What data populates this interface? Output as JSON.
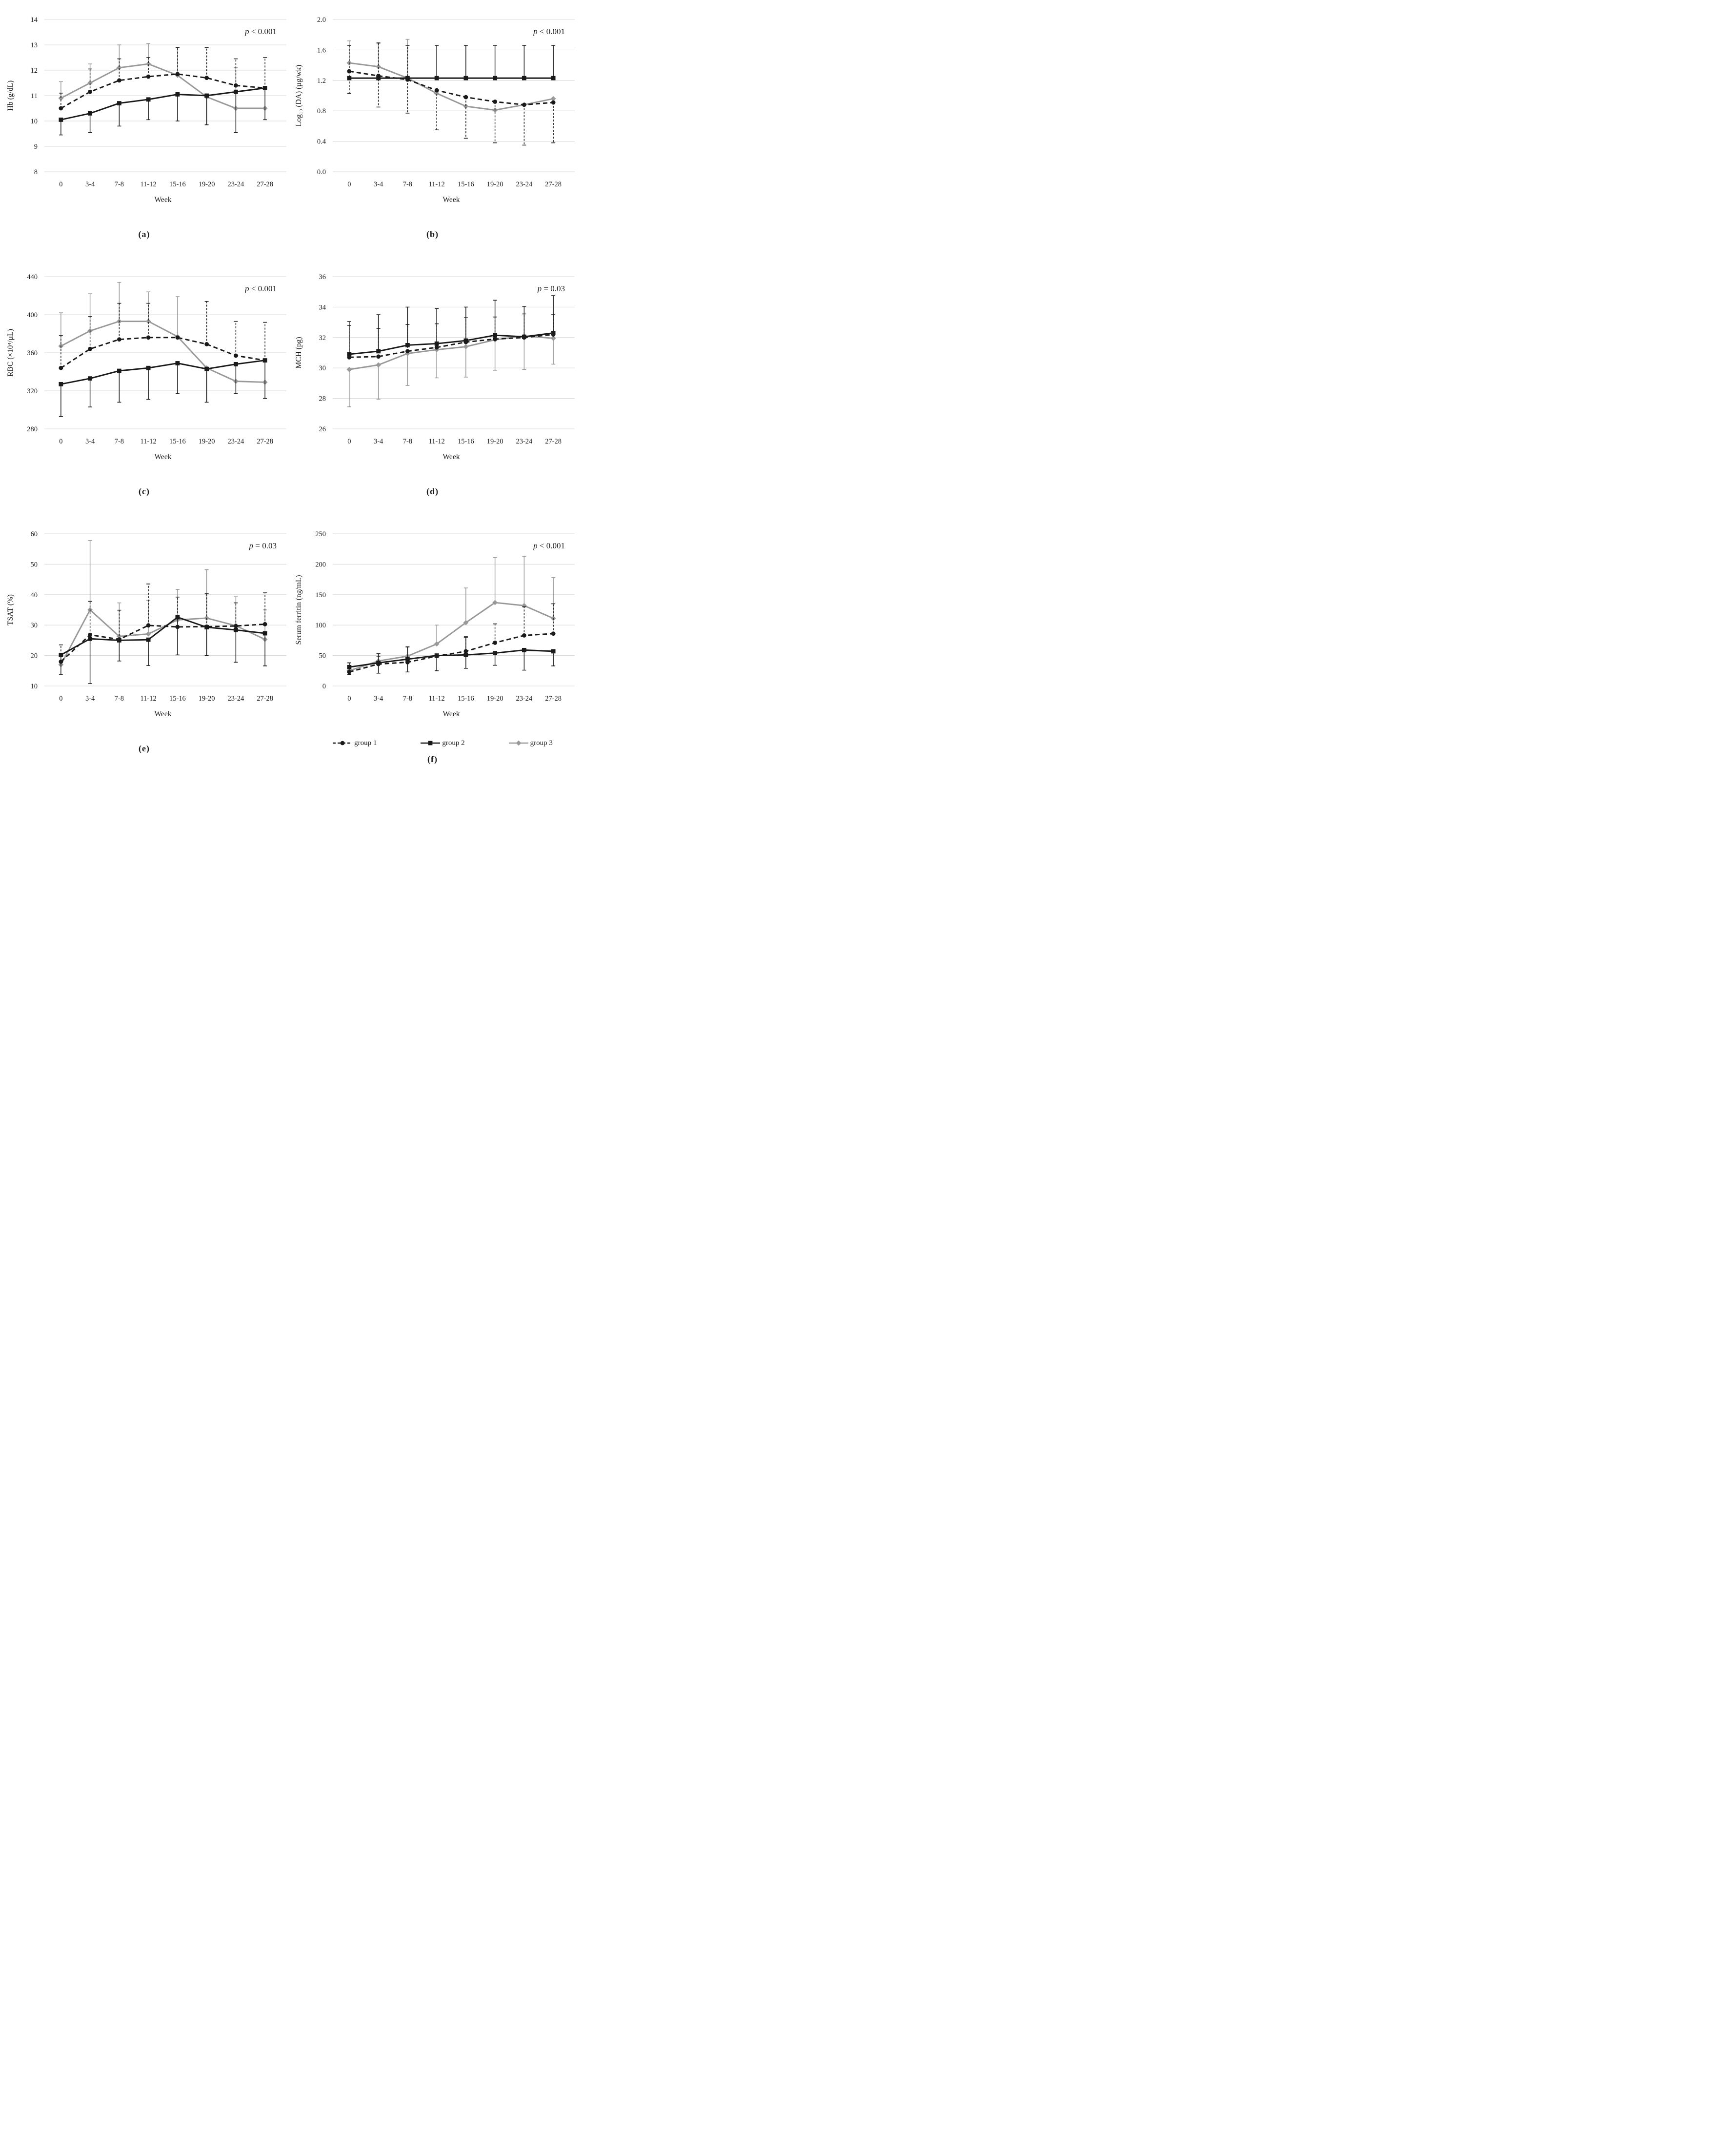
{
  "figure": {
    "xlabel": "Week",
    "colors": {
      "black": "#1a1a1a",
      "gray": "#999999",
      "grid": "#d9d9d9",
      "background": "#ffffff"
    },
    "legend": {
      "position": "below-panel-f",
      "items": [
        {
          "label": "group 1",
          "marker": "circle",
          "line": "dashed",
          "color": "#1a1a1a"
        },
        {
          "label": "group 2",
          "marker": "square",
          "line": "solid",
          "color": "#1a1a1a"
        },
        {
          "label": "group 3",
          "marker": "diamond",
          "line": "solid",
          "color": "#999999"
        }
      ]
    }
  },
  "chart_data": [
    {
      "id": "a",
      "type": "line",
      "caption": "(a)",
      "xlabel": "Week",
      "ylabel": "Hb (g/dL)",
      "annotation": "p < 0.001",
      "ylim": [
        8,
        14
      ],
      "yticks": [
        8,
        9,
        10,
        11,
        12,
        13,
        14
      ],
      "ytick_labels": [
        "8",
        "9",
        "10",
        "11",
        "12",
        "13",
        "14"
      ],
      "grid": true,
      "legend_shown": false,
      "categories": [
        "0",
        "3-4",
        "7-8",
        "11-12",
        "15-16",
        "19-20",
        "23-24",
        "27-28"
      ],
      "series": [
        {
          "name": "group 1",
          "marker": "circle",
          "line": "dashed",
          "color": "#1a1a1a",
          "values": [
            10.5,
            11.15,
            11.6,
            11.75,
            11.85,
            11.7,
            11.4,
            11.3
          ],
          "err_up": [
            0.6,
            0.9,
            0.85,
            0.75,
            1.05,
            1.2,
            1.05,
            1.2
          ],
          "err_down": [
            0,
            0,
            0,
            0,
            0,
            0,
            0,
            0
          ]
        },
        {
          "name": "group 2",
          "marker": "square",
          "line": "solid",
          "color": "#1a1a1a",
          "values": [
            10.05,
            10.3,
            10.7,
            10.85,
            11.05,
            11.0,
            11.15,
            11.3
          ],
          "err_up": [
            0,
            0,
            0,
            0,
            0,
            0,
            0,
            0
          ],
          "err_down": [
            0.6,
            0.75,
            0.9,
            0.8,
            1.05,
            1.15,
            1.6,
            1.25
          ]
        },
        {
          "name": "group 3",
          "marker": "diamond",
          "line": "solid",
          "color": "#999999",
          "values": [
            10.9,
            11.5,
            12.1,
            12.25,
            11.8,
            10.95,
            10.5,
            10.5
          ],
          "err_up": [
            0.65,
            0.75,
            0.9,
            0.8,
            1.1,
            0,
            1.6,
            0
          ],
          "err_down": [
            0,
            0,
            0,
            0,
            0,
            0,
            0,
            0
          ]
        }
      ]
    },
    {
      "id": "b",
      "type": "line",
      "caption": "(b)",
      "xlabel": "Week",
      "ylabel": "Log₁₀ (DA) (µg/wk)",
      "annotation": "p < 0.001",
      "ylim": [
        0,
        2
      ],
      "yticks": [
        0,
        0.4,
        0.8,
        1.2,
        1.6,
        2
      ],
      "ytick_labels": [
        "0.0",
        "0.4",
        "0.8",
        "1.2",
        "1.6",
        "2.0"
      ],
      "grid": true,
      "legend_shown": false,
      "categories": [
        "0",
        "3-4",
        "7-8",
        "11-12",
        "15-16",
        "19-20",
        "23-24",
        "27-28"
      ],
      "series": [
        {
          "name": "group 1",
          "marker": "circle",
          "line": "dashed",
          "color": "#1a1a1a",
          "values": [
            1.32,
            1.26,
            1.21,
            1.07,
            0.98,
            0.92,
            0.88,
            0.91
          ],
          "err_up": [
            0.34,
            0.43,
            0.45,
            0,
            0,
            0,
            0,
            0
          ],
          "err_down": [
            0.29,
            0.41,
            0.44,
            0.52,
            0.54,
            0.54,
            0.53,
            0.53
          ]
        },
        {
          "name": "group 2",
          "marker": "square",
          "line": "solid",
          "color": "#1a1a1a",
          "values": [
            1.23,
            1.23,
            1.23,
            1.23,
            1.23,
            1.23,
            1.23,
            1.23
          ],
          "err_up": [
            0,
            0,
            0,
            0.43,
            0.43,
            0.43,
            0.43,
            0.43
          ],
          "err_down": [
            0,
            0,
            0,
            0,
            0,
            0,
            0,
            0
          ]
        },
        {
          "name": "group 3",
          "marker": "diamond",
          "line": "solid",
          "color": "#999999",
          "values": [
            1.43,
            1.38,
            1.23,
            1.03,
            0.86,
            0.81,
            0.88,
            0.96
          ],
          "err_up": [
            0.29,
            0.32,
            0.51,
            0,
            0,
            0,
            0,
            0
          ],
          "err_down": [
            0,
            0,
            0,
            0,
            0,
            0,
            0,
            0
          ]
        }
      ]
    },
    {
      "id": "c",
      "type": "line",
      "caption": "(c)",
      "xlabel": "Week",
      "ylabel": "RBC (×10⁴/µL)",
      "annotation": "p < 0.001",
      "ylim": [
        280,
        440
      ],
      "yticks": [
        280,
        320,
        360,
        400,
        440
      ],
      "ytick_labels": [
        "280",
        "320",
        "360",
        "400",
        "440"
      ],
      "grid": true,
      "legend_shown": false,
      "categories": [
        "0",
        "3-4",
        "7-8",
        "11-12",
        "15-16",
        "19-20",
        "23-24",
        "27-28"
      ],
      "series": [
        {
          "name": "group 1",
          "marker": "circle",
          "line": "dashed",
          "color": "#1a1a1a",
          "values": [
            344,
            364,
            374,
            376,
            376,
            369,
            357,
            352
          ],
          "err_up": [
            34,
            34,
            38,
            36,
            0,
            45,
            36,
            40
          ],
          "err_down": [
            0,
            0,
            0,
            0,
            0,
            0,
            0,
            0
          ]
        },
        {
          "name": "group 2",
          "marker": "square",
          "line": "solid",
          "color": "#1a1a1a",
          "values": [
            327,
            333,
            341,
            344,
            349,
            343,
            348,
            352
          ],
          "err_up": [
            0,
            0,
            0,
            0,
            0,
            0,
            0,
            0
          ],
          "err_down": [
            34,
            30,
            33,
            33,
            32,
            35,
            31,
            40
          ]
        },
        {
          "name": "group 3",
          "marker": "diamond",
          "line": "solid",
          "color": "#999999",
          "values": [
            367,
            383,
            393,
            393,
            377,
            344,
            330,
            329
          ],
          "err_up": [
            35,
            39,
            41,
            31,
            42,
            0,
            0,
            0
          ],
          "err_down": [
            0,
            0,
            0,
            0,
            0,
            0,
            0,
            0
          ]
        }
      ]
    },
    {
      "id": "d",
      "type": "line",
      "caption": "(d)",
      "xlabel": "Week",
      "ylabel": "MCH (pg)",
      "annotation": "p = 0.03",
      "ylim": [
        26,
        36
      ],
      "yticks": [
        26,
        28,
        30,
        32,
        34,
        36
      ],
      "ytick_labels": [
        "26",
        "28",
        "30",
        "32",
        "34",
        "36"
      ],
      "grid": true,
      "legend_shown": false,
      "categories": [
        "0",
        "3-4",
        "7-8",
        "11-12",
        "15-16",
        "19-20",
        "23-24",
        "27-28"
      ],
      "series": [
        {
          "name": "group 1",
          "marker": "circle",
          "line": "dashed",
          "color": "#1a1a1a",
          "values": [
            30.7,
            30.75,
            31.1,
            31.35,
            31.7,
            31.9,
            32.0,
            32.2
          ],
          "err_up": [
            2.1,
            1.85,
            1.75,
            1.55,
            1.6,
            1.45,
            1.55,
            1.3
          ],
          "err_down": [
            0,
            0,
            0,
            0,
            0,
            0,
            0,
            0
          ]
        },
        {
          "name": "group 2",
          "marker": "square",
          "line": "solid",
          "color": "#1a1a1a",
          "values": [
            30.9,
            31.1,
            31.5,
            31.6,
            31.8,
            32.15,
            32.05,
            32.3
          ],
          "err_up": [
            2.15,
            2.4,
            2.5,
            2.3,
            2.2,
            2.3,
            2.0,
            2.45
          ],
          "err_down": [
            0,
            0,
            0,
            0,
            0,
            0,
            0,
            0
          ]
        },
        {
          "name": "group 3",
          "marker": "diamond",
          "line": "solid",
          "color": "#999999",
          "values": [
            29.9,
            30.2,
            30.95,
            31.2,
            31.4,
            31.85,
            32.1,
            31.95
          ],
          "err_up": [
            0,
            0,
            0,
            0,
            0,
            0,
            0,
            0
          ],
          "err_down": [
            2.45,
            2.25,
            2.1,
            1.85,
            2.0,
            2.0,
            2.2,
            1.7
          ]
        }
      ]
    },
    {
      "id": "e",
      "type": "line",
      "caption": "(e)",
      "xlabel": "Week",
      "ylabel": "TSAT (%)",
      "annotation": "p = 0.03",
      "ylim": [
        10,
        60
      ],
      "yticks": [
        10,
        20,
        30,
        40,
        50,
        60
      ],
      "ytick_labels": [
        "10",
        "20",
        "30",
        "40",
        "50",
        "60"
      ],
      "grid": true,
      "legend_shown": false,
      "categories": [
        "0",
        "3-4",
        "7-8",
        "11-12",
        "15-16",
        "19-20",
        "23-24",
        "27-28"
      ],
      "series": [
        {
          "name": "group 1",
          "marker": "circle",
          "line": "dashed",
          "color": "#1a1a1a",
          "values": [
            18,
            26.8,
            25.3,
            29.9,
            29.4,
            29.5,
            29.7,
            30.3
          ],
          "err_up": [
            5.5,
            11,
            9.6,
            13.6,
            9.8,
            10.8,
            7.6,
            10.3
          ],
          "err_down": [
            0,
            0,
            0,
            0,
            0,
            0,
            0,
            0
          ]
        },
        {
          "name": "group 2",
          "marker": "square",
          "line": "solid",
          "color": "#1a1a1a",
          "values": [
            20.2,
            25.5,
            25.0,
            25.2,
            32.6,
            29.3,
            28.4,
            27.3
          ],
          "err_up": [
            0,
            0,
            0,
            0,
            0,
            0,
            0,
            0
          ],
          "err_down": [
            6.5,
            14.7,
            6.8,
            8.5,
            12.4,
            9.3,
            10.6,
            10.7
          ]
        },
        {
          "name": "group 3",
          "marker": "diamond",
          "line": "solid",
          "color": "#999999",
          "values": [
            17,
            35,
            26.3,
            27.1,
            31.7,
            32.3,
            29.8,
            25.3
          ],
          "err_up": [
            0,
            22.8,
            11,
            11,
            10,
            15.9,
            9.5,
            9.7
          ],
          "err_down": [
            0,
            0,
            0,
            0,
            0,
            0,
            0,
            0
          ]
        }
      ]
    },
    {
      "id": "f",
      "type": "line",
      "caption": "(f)",
      "xlabel": "Week",
      "ylabel": "Serum ferritin (ng/mL)",
      "annotation": "p < 0.001",
      "ylim": [
        0,
        250
      ],
      "yticks": [
        0,
        50,
        100,
        150,
        200,
        250
      ],
      "ytick_labels": [
        "0",
        "50",
        "100",
        "150",
        "200",
        "250"
      ],
      "grid": true,
      "legend_shown": true,
      "categories": [
        "0",
        "3-4",
        "7-8",
        "11-12",
        "15-16",
        "19-20",
        "23-24",
        "27-28"
      ],
      "series": [
        {
          "name": "group 1",
          "marker": "circle",
          "line": "dashed",
          "color": "#1a1a1a",
          "values": [
            23,
            36,
            39,
            49,
            57,
            71,
            83,
            86
          ],
          "err_up": [
            15,
            12,
            0,
            0,
            24,
            31,
            47,
            49
          ],
          "err_down": [
            0,
            0,
            0,
            0,
            0,
            0,
            0,
            0
          ]
        },
        {
          "name": "group 2",
          "marker": "square",
          "line": "solid",
          "color": "#1a1a1a",
          "values": [
            31,
            38,
            44,
            50,
            51,
            54,
            59,
            57
          ],
          "err_up": [
            7,
            15,
            20,
            0,
            29,
            0,
            0,
            0
          ],
          "err_down": [
            12,
            17,
            21,
            25,
            22,
            20,
            33,
            24
          ]
        },
        {
          "name": "group 3",
          "marker": "diamond",
          "line": "solid",
          "color": "#999999",
          "values": [
            25,
            41,
            49,
            69,
            104,
            137,
            132,
            111
          ],
          "err_up": [
            0,
            12,
            16,
            31,
            57,
            74,
            81,
            67
          ],
          "err_down": [
            0,
            0,
            0,
            0,
            0,
            0,
            0,
            0
          ]
        }
      ]
    }
  ]
}
